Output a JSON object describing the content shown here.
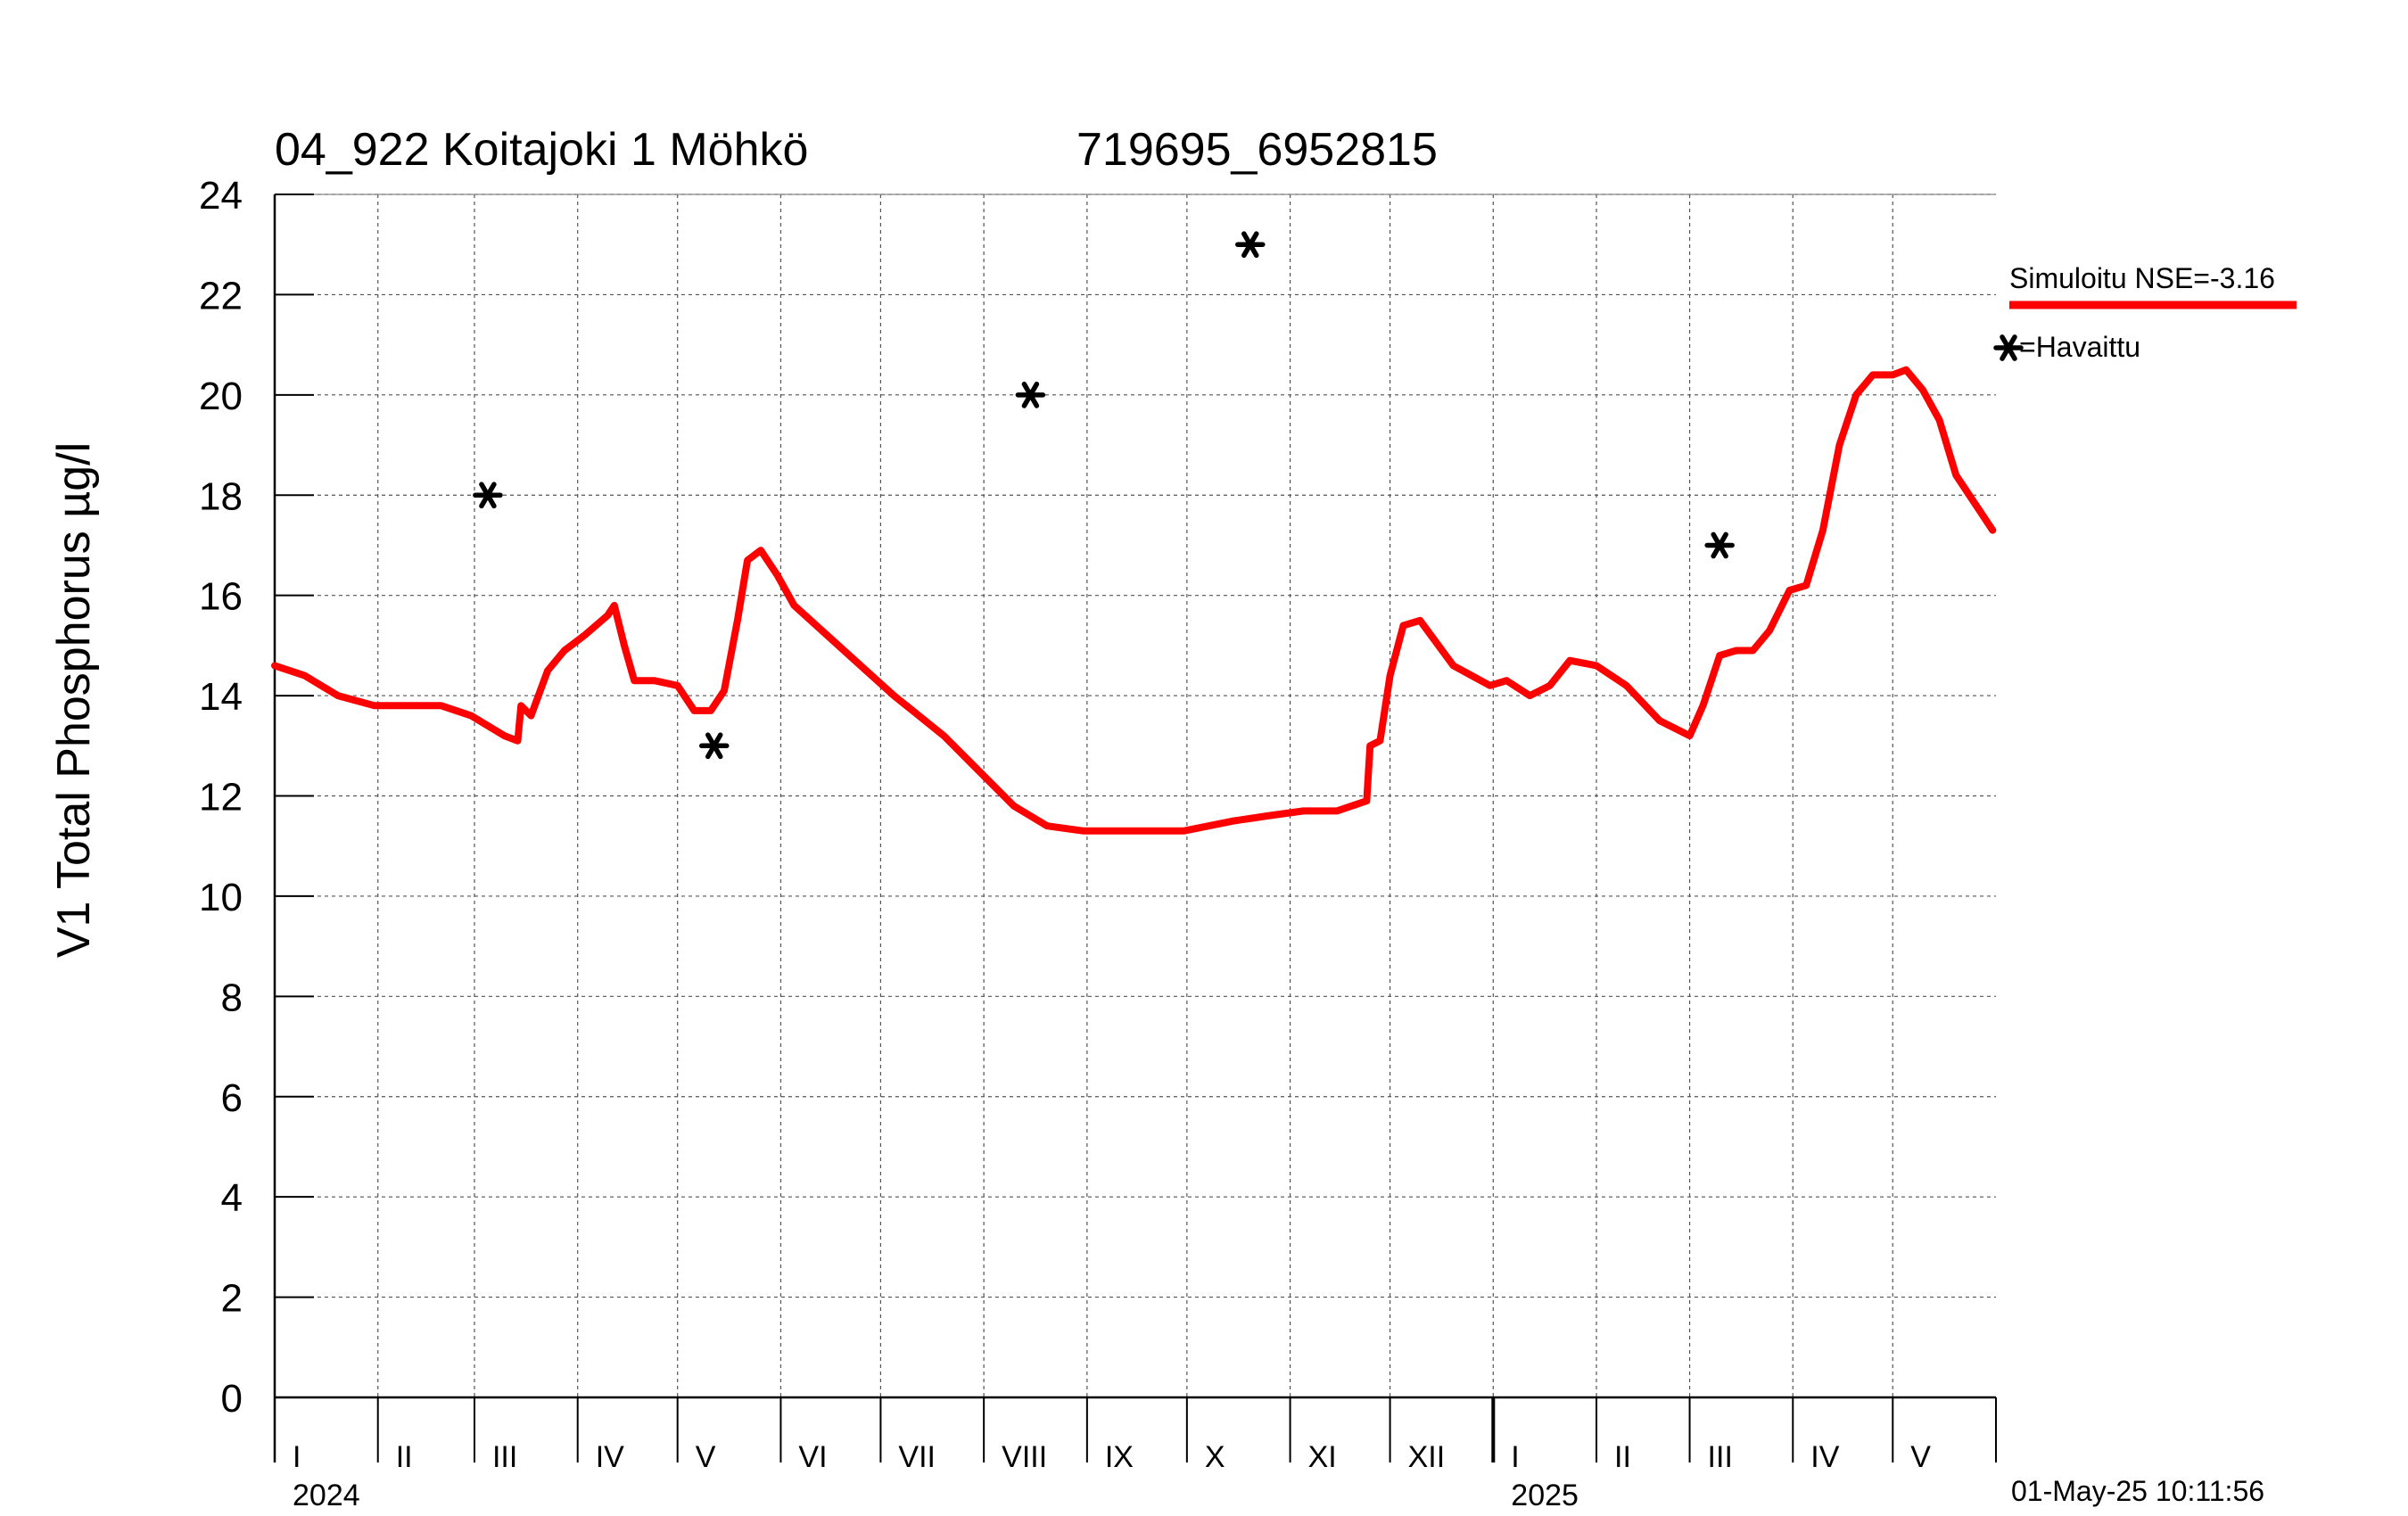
{
  "chart_data": {
    "type": "line",
    "title": "04_922 Koitajoki 1 Möhkö",
    "subtitle": "719695_6952815",
    "ylabel": "V1 Total Phosphorus µg/l",
    "xlabel": "",
    "ylim": [
      0,
      24
    ],
    "yticks": [
      0,
      2,
      4,
      6,
      8,
      10,
      12,
      14,
      16,
      18,
      20,
      22,
      24
    ],
    "xlim": [
      "2024-01-01",
      "2025-06-01"
    ],
    "grid": true,
    "month_labels": [
      {
        "start": "2024-01-01",
        "label": "I"
      },
      {
        "start": "2024-02-01",
        "label": "II"
      },
      {
        "start": "2024-03-01",
        "label": "III"
      },
      {
        "start": "2024-04-01",
        "label": "IV"
      },
      {
        "start": "2024-05-01",
        "label": "V"
      },
      {
        "start": "2024-06-01",
        "label": "VI"
      },
      {
        "start": "2024-07-01",
        "label": "VII"
      },
      {
        "start": "2024-08-01",
        "label": "VIII"
      },
      {
        "start": "2024-09-01",
        "label": "IX"
      },
      {
        "start": "2024-10-01",
        "label": "X"
      },
      {
        "start": "2024-11-01",
        "label": "XI"
      },
      {
        "start": "2024-12-01",
        "label": "XII"
      },
      {
        "start": "2025-01-01",
        "label": "I"
      },
      {
        "start": "2025-02-01",
        "label": "II"
      },
      {
        "start": "2025-03-01",
        "label": "III"
      },
      {
        "start": "2025-04-01",
        "label": "IV"
      },
      {
        "start": "2025-05-01",
        "label": "V"
      }
    ],
    "year_labels": [
      {
        "start": "2024-01-01",
        "label": "2024"
      },
      {
        "start": "2025-01-01",
        "label": "2025"
      }
    ],
    "legend_position": "right",
    "series": [
      {
        "name": "Simuloitu NSE=-3.16",
        "color": "#ff0000",
        "x": [
          "2024-01-01",
          "2024-01-10",
          "2024-01-20",
          "2024-01-31",
          "2024-02-10",
          "2024-02-20",
          "2024-02-29",
          "2024-03-10",
          "2024-03-14",
          "2024-03-15",
          "2024-03-18",
          "2024-03-23",
          "2024-03-28",
          "2024-04-03",
          "2024-04-10",
          "2024-04-12",
          "2024-04-15",
          "2024-04-18",
          "2024-04-24",
          "2024-05-01",
          "2024-05-06",
          "2024-05-11",
          "2024-05-15",
          "2024-05-19",
          "2024-05-22",
          "2024-05-26",
          "2024-05-31",
          "2024-06-05",
          "2024-06-15",
          "2024-06-25",
          "2024-07-05",
          "2024-07-20",
          "2024-08-01",
          "2024-08-10",
          "2024-08-20",
          "2024-08-31",
          "2024-09-15",
          "2024-09-30",
          "2024-10-15",
          "2024-10-25",
          "2024-11-05",
          "2024-11-15",
          "2024-11-24",
          "2024-11-25",
          "2024-11-28",
          "2024-12-01",
          "2024-12-05",
          "2024-12-10",
          "2024-12-20",
          "2024-12-31",
          "2025-01-05",
          "2025-01-12",
          "2025-01-18",
          "2025-01-24",
          "2025-02-01",
          "2025-02-10",
          "2025-02-20",
          "2025-03-01",
          "2025-03-05",
          "2025-03-10",
          "2025-03-15",
          "2025-03-20",
          "2025-03-25",
          "2025-03-31",
          "2025-04-05",
          "2025-04-10",
          "2025-04-15",
          "2025-04-20",
          "2025-04-25",
          "2025-05-01",
          "2025-05-05",
          "2025-05-10",
          "2025-05-15",
          "2025-05-20",
          "2025-05-31"
        ],
        "y": [
          14.6,
          14.4,
          14.0,
          13.8,
          13.8,
          13.8,
          13.6,
          13.2,
          13.1,
          13.8,
          13.6,
          14.5,
          14.9,
          15.2,
          15.6,
          15.8,
          15.0,
          14.3,
          14.3,
          14.2,
          13.7,
          13.7,
          14.1,
          15.5,
          16.7,
          16.9,
          16.4,
          15.8,
          15.2,
          14.6,
          14.0,
          13.2,
          12.4,
          11.8,
          11.4,
          11.3,
          11.3,
          11.3,
          11.5,
          11.6,
          11.7,
          11.7,
          11.9,
          13.0,
          13.1,
          14.4,
          15.4,
          15.5,
          14.6,
          14.2,
          14.3,
          14.0,
          14.2,
          14.7,
          14.6,
          14.2,
          13.5,
          13.2,
          13.8,
          14.8,
          14.9,
          14.9,
          15.3,
          16.1,
          16.2,
          17.3,
          19.0,
          20.0,
          20.4,
          20.4,
          20.5,
          20.1,
          19.5,
          18.4,
          17.3
        ]
      },
      {
        "name": "=Havaittu",
        "marker": "asterisk",
        "color": "#000000",
        "x": [
          "2024-03-05",
          "2024-05-12",
          "2024-08-15",
          "2024-10-20",
          "2025-03-10"
        ],
        "y": [
          18,
          13,
          20,
          23,
          17
        ]
      }
    ],
    "timestamp": "01-May-25 10:11:56"
  }
}
